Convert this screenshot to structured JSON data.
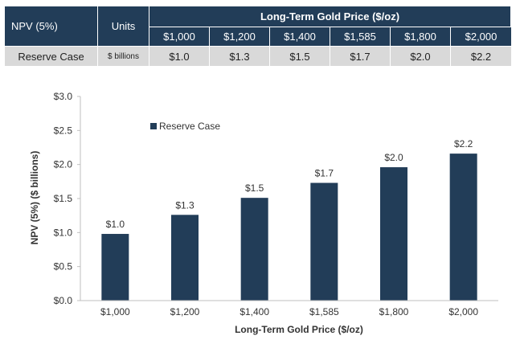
{
  "table": {
    "col1_header": "NPV (5%)",
    "col2_header": "Units",
    "group_header": "Long-Term Gold Price ($/oz)",
    "prices": [
      "$1,000",
      "$1,200",
      "$1,400",
      "$1,585",
      "$1,800",
      "$2,000"
    ],
    "row_label": "Reserve Case",
    "row_units": "$ billions",
    "row_values": [
      "$1.0",
      "$1.3",
      "$1.5",
      "$1.7",
      "$2.0",
      "$2.2"
    ]
  },
  "chart_data": {
    "type": "bar",
    "categories": [
      "$1,000",
      "$1,200",
      "$1,400",
      "$1,585",
      "$1,800",
      "$2,000"
    ],
    "series": [
      {
        "name": "Reserve Case",
        "values": [
          0.98,
          1.26,
          1.51,
          1.73,
          1.96,
          2.16
        ],
        "labels": [
          "$1.0",
          "$1.3",
          "$1.5",
          "$1.7",
          "$2.0",
          "$2.2"
        ]
      }
    ],
    "xlabel": "Long-Term Gold Price ($/oz)",
    "ylabel": "NPV (5%) ($ billions)",
    "ylim": [
      0,
      3.0
    ],
    "yticks": [
      0,
      0.5,
      1.0,
      1.5,
      2.0,
      2.5,
      3.0
    ],
    "ytick_labels": [
      "$0.0",
      "$0.5",
      "$1.0",
      "$1.5",
      "$2.0",
      "$2.5",
      "$3.0"
    ],
    "legend": "top-left",
    "grid": false,
    "bar_color": "#223d58"
  }
}
